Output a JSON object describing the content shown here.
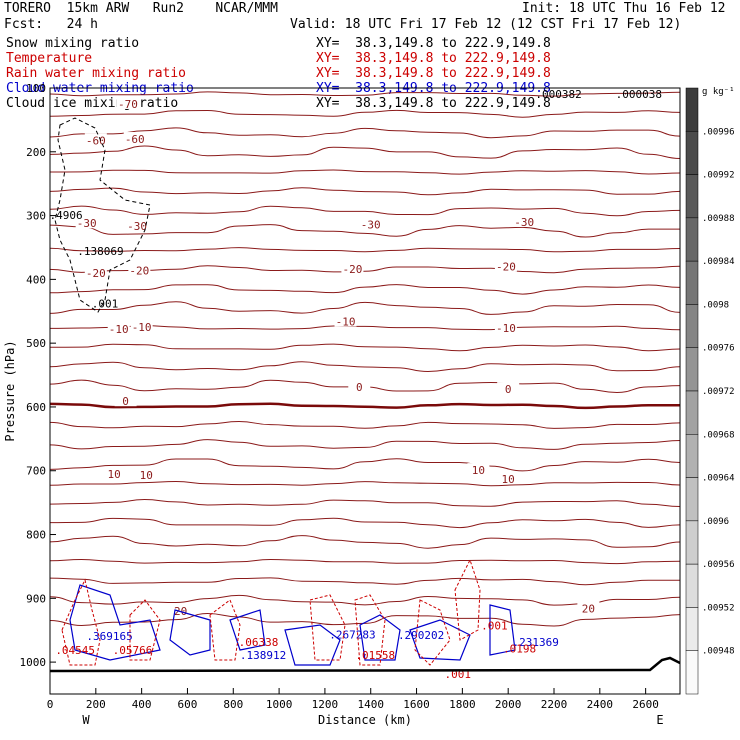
{
  "header": {
    "model": "TORERO  15km ARW   Run2    NCAR/MMM",
    "init": "Init: 18 UTC Thu 16 Feb 12",
    "fcst": "Fcst:   24 h",
    "valid": "Valid: 18 UTC Fri 17 Feb 12 (12 CST Fri 17 Feb 12)",
    "fields": [
      {
        "name": "Snow mixing ratio",
        "xy": "XY=  38.3,149.8 to 222.9,149.8",
        "color": "#000000"
      },
      {
        "name": "Temperature",
        "xy": "XY=  38.3,149.8 to 222.9,149.8",
        "color": "#cc0000"
      },
      {
        "name": "Rain water mixing ratio",
        "xy": "XY=  38.3,149.8 to 222.9,149.8",
        "color": "#cc0000"
      },
      {
        "name": "Cloud water mixing ratio",
        "xy": "XY=  38.3,149.8 to 222.9,149.8",
        "color": "#0000cc"
      },
      {
        "name": "Cloud ice mixing ratio",
        "xy": "XY=  38.3,149.8 to 222.9,149.8",
        "color": "#000000"
      }
    ]
  },
  "chart_data": {
    "type": "contour-cross-section",
    "xlabel": "Distance (km)",
    "ylabel": "Pressure (hPa)",
    "xlim": [
      0,
      2750
    ],
    "ylim": [
      1050,
      100
    ],
    "x_ticks": [
      0,
      200,
      400,
      600,
      800,
      1000,
      1200,
      1400,
      1600,
      1800,
      2000,
      2200,
      2400,
      2600
    ],
    "y_ticks": [
      200,
      300,
      400,
      500,
      600,
      700,
      800,
      900,
      1000
    ],
    "end_labels": {
      "left": "W",
      "right": "E"
    },
    "colorbar": {
      "unit": "g kg⁻¹",
      "labels": [
        ".00996",
        ".00992",
        ".00988",
        ".00984",
        ".0098",
        ".00976",
        ".00972",
        ".00968",
        ".00964",
        ".0096",
        ".00956",
        ".00952",
        ".00948"
      ]
    },
    "temperature_labels": [
      {
        "x": 340,
        "p": 125,
        "t": "-70"
      },
      {
        "x": 200,
        "p": 182,
        "t": "-60"
      },
      {
        "x": 370,
        "p": 180,
        "t": "-60"
      },
      {
        "x": 160,
        "p": 312,
        "t": "-30"
      },
      {
        "x": 380,
        "p": 316,
        "t": "-30"
      },
      {
        "x": 1400,
        "p": 314,
        "t": "-30"
      },
      {
        "x": 2070,
        "p": 310,
        "t": "-30"
      },
      {
        "x": 200,
        "p": 390,
        "t": "-20"
      },
      {
        "x": 390,
        "p": 386,
        "t": "-20"
      },
      {
        "x": 1320,
        "p": 384,
        "t": "-20"
      },
      {
        "x": 1990,
        "p": 380,
        "t": "-20"
      },
      {
        "x": 300,
        "p": 478,
        "t": "-10"
      },
      {
        "x": 400,
        "p": 475,
        "t": "-10"
      },
      {
        "x": 1290,
        "p": 466,
        "t": "-10"
      },
      {
        "x": 1990,
        "p": 476,
        "t": "-10"
      },
      {
        "x": 330,
        "p": 591,
        "t": "0"
      },
      {
        "x": 1350,
        "p": 569,
        "t": "0"
      },
      {
        "x": 2000,
        "p": 572,
        "t": "0"
      },
      {
        "x": 280,
        "p": 705,
        "t": "10"
      },
      {
        "x": 420,
        "p": 707,
        "t": "10"
      },
      {
        "x": 1870,
        "p": 699,
        "t": "10"
      },
      {
        "x": 2000,
        "p": 713,
        "t": "10"
      },
      {
        "x": 570,
        "p": 920,
        "t": "20"
      },
      {
        "x": 2350,
        "p": 916,
        "t": "20"
      }
    ],
    "temperature_isotherm_p_at_x": {
      "x": [
        0,
        400,
        800,
        1300,
        1700,
        2100,
        2500,
        2750
      ],
      "isotherms": {
        "-70": [
          124,
          123,
          123,
          124,
          122,
          123,
          122,
          122
        ],
        "-60": [
          182,
          181,
          181,
          181,
          180,
          180,
          180,
          180
        ],
        "-30": [
          313,
          316,
          314,
          314,
          312,
          310,
          310,
          311
        ],
        "-20": [
          387,
          386,
          386,
          384,
          382,
          380,
          380,
          380
        ],
        "-10": [
          476,
          475,
          474,
          466,
          470,
          476,
          476,
          476
        ],
        "0": [
          591,
          589,
          586,
          569,
          575,
          572,
          570,
          570
        ],
        "10": [
          704,
          707,
          706,
          725,
          700,
          713,
          708,
          708
        ],
        "20": [
          922,
          920,
          922,
          918,
          920,
          916,
          916,
          916
        ]
      }
    },
    "cloud_water_labels": [
      {
        "x": 260,
        "p": 965,
        "t": ".369165"
      },
      {
        "x": 1320,
        "p": 963,
        "t": ".267283"
      },
      {
        "x": 1620,
        "p": 964,
        "t": ".290202"
      },
      {
        "x": 930,
        "p": 995,
        "t": ".138912"
      },
      {
        "x": 2120,
        "p": 975,
        "t": ".231369"
      }
    ],
    "rain_labels": [
      {
        "x": 110,
        "p": 987,
        "t": ".04545"
      },
      {
        "x": 360,
        "p": 987,
        "t": ".05766"
      },
      {
        "x": 910,
        "p": 975,
        "t": ".06338"
      },
      {
        "x": 1420,
        "p": 995,
        "t": ".01558"
      },
      {
        "x": 2050,
        "p": 985,
        "t": ".0198"
      },
      {
        "x": 1940,
        "p": 949,
        "t": ".001"
      },
      {
        "x": 1780,
        "p": 1025,
        "t": ".001"
      }
    ],
    "snow_labels": [
      {
        "x": 220,
        "p": 362,
        "t": ".138069"
      },
      {
        "x": 240,
        "p": 444,
        "t": ".001"
      },
      {
        "x": 70,
        "p": 305,
        "t": ".4906"
      },
      {
        "x": 2220,
        "p": 116,
        "t": ".000382"
      },
      {
        "x": 2570,
        "p": 116,
        "t": ".000038"
      }
    ]
  }
}
